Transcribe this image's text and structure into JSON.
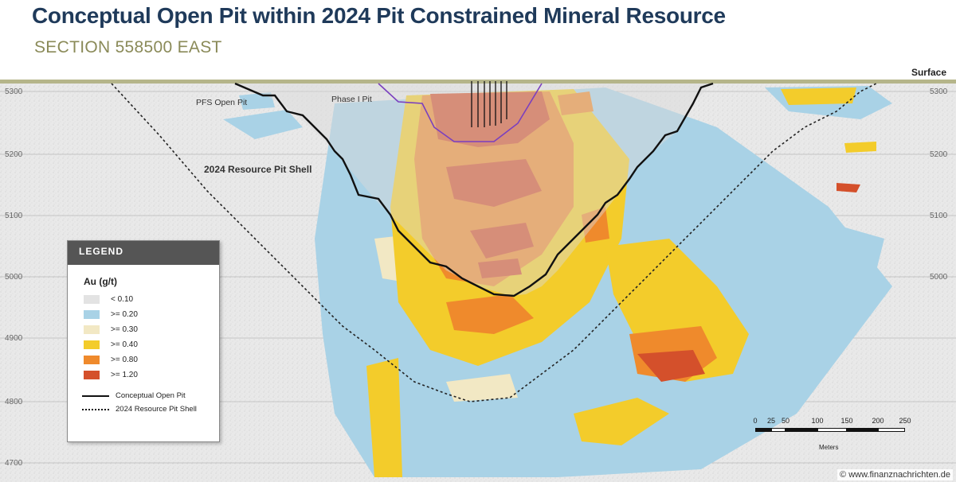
{
  "header": {
    "title": "Conceptual Open Pit within 2024 Pit Constrained Mineral Resource",
    "subtitle": "SECTION 558500 EAST"
  },
  "section": {
    "surface_label": "Surface",
    "elevations": [
      "5300",
      "5200",
      "5100",
      "5000",
      "4900",
      "4800",
      "4700"
    ],
    "pit_labels": {
      "pfs": "PFS Open Pit",
      "phase1": "Phase I Pit",
      "resource_shell": "2024 Resource Pit Shell"
    },
    "colors": {
      "lt010": "#e3e3e3",
      "ge020": "#a9d2e6",
      "ge030": "#f2e8c4",
      "ge040": "#f3cc2b",
      "ge080": "#ef8a2c",
      "ge120": "#d4502b",
      "phase1_outline": "#7a3fbf"
    }
  },
  "legend": {
    "title": "LEGEND",
    "unit": "Au (g/t)",
    "grades": [
      {
        "label": "<  0.10",
        "color": "#e3e3e3"
      },
      {
        "label": ">= 0.20",
        "color": "#a9d2e6"
      },
      {
        "label": ">= 0.30",
        "color": "#f2e8c4"
      },
      {
        "label": ">= 0.40",
        "color": "#f3cc2b"
      },
      {
        "label": ">= 0.80",
        "color": "#ef8a2c"
      },
      {
        "label": ">= 1.20",
        "color": "#d4502b"
      }
    ],
    "lines": [
      {
        "label": "Conceptual Open Pit",
        "style": "solid"
      },
      {
        "label": "2024 Resource Pit Shell",
        "style": "dotted"
      }
    ]
  },
  "scale_bar": {
    "ticks": [
      "0",
      "25",
      "50",
      "100",
      "150",
      "200",
      "250"
    ],
    "unit": "Meters"
  },
  "watermark": "© www.finanznachrichten.de"
}
